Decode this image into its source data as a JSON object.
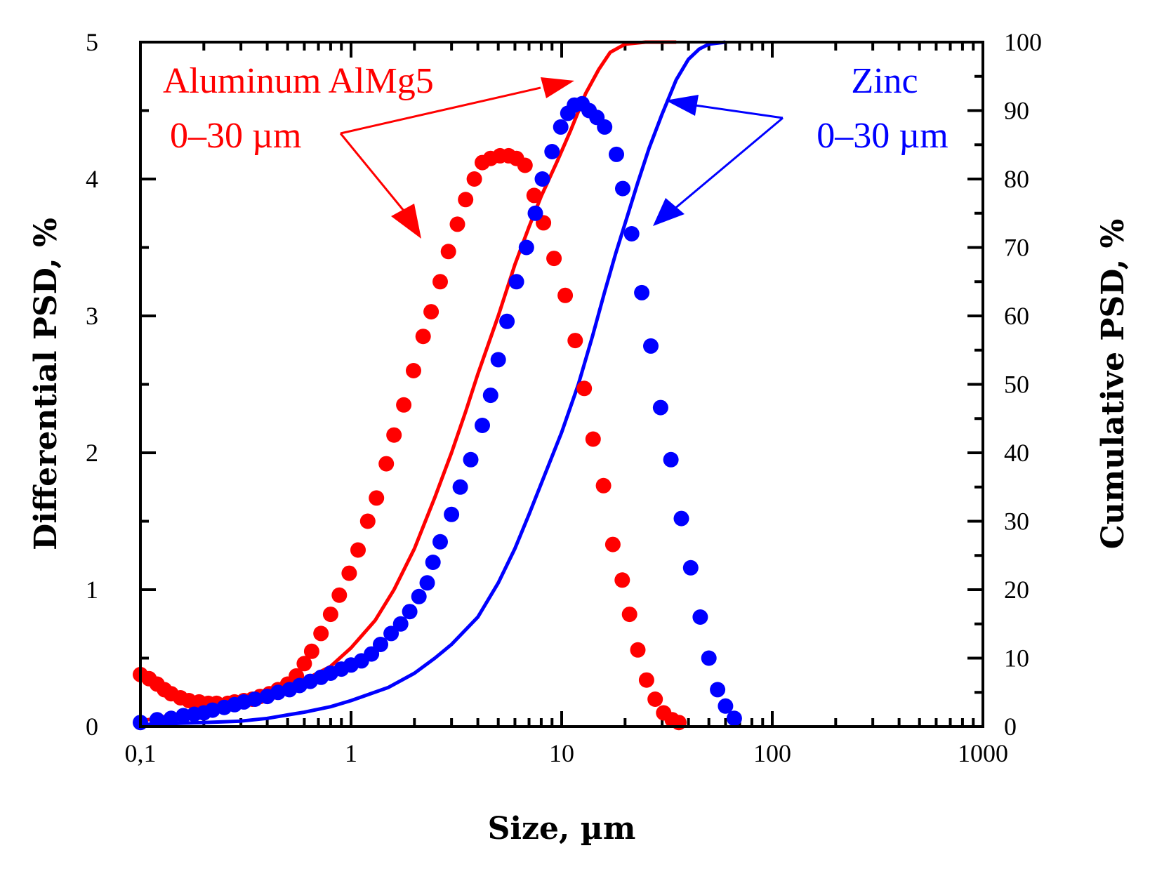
{
  "chart_data": {
    "type": "scatter",
    "xlabel": "Size, µm",
    "ylabel_left": "Differential PSD, %",
    "ylabel_right": "Cumulative PSD, %",
    "xscale": "log",
    "xlim": [
      0.1,
      1000
    ],
    "ylim_left": [
      0,
      5
    ],
    "ylim_right": [
      0,
      100
    ],
    "x_ticks": [
      {
        "value": 0.1,
        "label": "0,1"
      },
      {
        "value": 1,
        "label": "1"
      },
      {
        "value": 10,
        "label": "10"
      },
      {
        "value": 100,
        "label": "100"
      },
      {
        "value": 1000,
        "label": "1000"
      }
    ],
    "y_ticks_left": [
      "0",
      "1",
      "2",
      "3",
      "4",
      "5"
    ],
    "y_ticks_right": [
      "0",
      "10",
      "20",
      "30",
      "40",
      "50",
      "60",
      "70",
      "80",
      "90",
      "100"
    ],
    "colors": {
      "aluminum": "#ff0000",
      "zinc": "#0000ff",
      "axis": "#000000"
    },
    "annotations": [
      {
        "series": "aluminum",
        "line1": "Aluminum AlMg5",
        "line2": "0–30 µm"
      },
      {
        "series": "zinc",
        "line1": "Zinc",
        "line2": "0–30 µm"
      }
    ],
    "series": [
      {
        "name": "Aluminum AlMg5 differential",
        "kind": "differential",
        "color": "#ff0000",
        "axis": "left",
        "points": [
          [
            0.1,
            0.38
          ],
          [
            0.11,
            0.35
          ],
          [
            0.12,
            0.31
          ],
          [
            0.13,
            0.27
          ],
          [
            0.14,
            0.24
          ],
          [
            0.155,
            0.21
          ],
          [
            0.17,
            0.19
          ],
          [
            0.19,
            0.18
          ],
          [
            0.21,
            0.17
          ],
          [
            0.23,
            0.17
          ],
          [
            0.26,
            0.17
          ],
          [
            0.28,
            0.18
          ],
          [
            0.31,
            0.19
          ],
          [
            0.34,
            0.2
          ],
          [
            0.37,
            0.22
          ],
          [
            0.41,
            0.24
          ],
          [
            0.45,
            0.27
          ],
          [
            0.5,
            0.31
          ],
          [
            0.55,
            0.37
          ],
          [
            0.6,
            0.46
          ],
          [
            0.65,
            0.55
          ],
          [
            0.72,
            0.68
          ],
          [
            0.8,
            0.82
          ],
          [
            0.88,
            0.96
          ],
          [
            0.98,
            1.12
          ],
          [
            1.08,
            1.29
          ],
          [
            1.2,
            1.5
          ],
          [
            1.32,
            1.67
          ],
          [
            1.47,
            1.92
          ],
          [
            1.6,
            2.13
          ],
          [
            1.78,
            2.35
          ],
          [
            1.98,
            2.6
          ],
          [
            2.2,
            2.85
          ],
          [
            2.4,
            3.03
          ],
          [
            2.65,
            3.25
          ],
          [
            2.9,
            3.47
          ],
          [
            3.2,
            3.67
          ],
          [
            3.5,
            3.85
          ],
          [
            3.85,
            4.0
          ],
          [
            4.2,
            4.12
          ],
          [
            4.6,
            4.15
          ],
          [
            5.1,
            4.17
          ],
          [
            5.6,
            4.17
          ],
          [
            6.1,
            4.15
          ],
          [
            6.7,
            4.1
          ],
          [
            7.4,
            3.88
          ],
          [
            8.2,
            3.68
          ],
          [
            9.2,
            3.42
          ],
          [
            10.4,
            3.15
          ],
          [
            11.6,
            2.82
          ],
          [
            12.8,
            2.47
          ],
          [
            14.1,
            2.1
          ],
          [
            15.8,
            1.76
          ],
          [
            17.5,
            1.33
          ],
          [
            19.4,
            1.07
          ],
          [
            21.0,
            0.82
          ],
          [
            23.0,
            0.56
          ],
          [
            25.3,
            0.34
          ],
          [
            27.8,
            0.2
          ],
          [
            30.5,
            0.1
          ],
          [
            33.5,
            0.05
          ],
          [
            36.0,
            0.03
          ]
        ]
      },
      {
        "name": "Zinc differential",
        "kind": "differential",
        "color": "#0000ff",
        "axis": "left",
        "points": [
          [
            0.1,
            0.03
          ],
          [
            0.12,
            0.05
          ],
          [
            0.14,
            0.06
          ],
          [
            0.16,
            0.08
          ],
          [
            0.18,
            0.09
          ],
          [
            0.2,
            0.1
          ],
          [
            0.22,
            0.12
          ],
          [
            0.25,
            0.14
          ],
          [
            0.28,
            0.16
          ],
          [
            0.31,
            0.18
          ],
          [
            0.35,
            0.2
          ],
          [
            0.4,
            0.22
          ],
          [
            0.45,
            0.25
          ],
          [
            0.51,
            0.27
          ],
          [
            0.57,
            0.3
          ],
          [
            0.64,
            0.33
          ],
          [
            0.72,
            0.36
          ],
          [
            0.8,
            0.39
          ],
          [
            0.9,
            0.42
          ],
          [
            1.0,
            0.45
          ],
          [
            1.12,
            0.48
          ],
          [
            1.25,
            0.53
          ],
          [
            1.38,
            0.6
          ],
          [
            1.55,
            0.68
          ],
          [
            1.72,
            0.75
          ],
          [
            1.9,
            0.84
          ],
          [
            2.1,
            0.95
          ],
          [
            2.3,
            1.05
          ],
          [
            2.45,
            1.2
          ],
          [
            2.65,
            1.35
          ],
          [
            3.0,
            1.55
          ],
          [
            3.3,
            1.75
          ],
          [
            3.7,
            1.95
          ],
          [
            4.2,
            2.2
          ],
          [
            4.6,
            2.42
          ],
          [
            5.0,
            2.68
          ],
          [
            5.5,
            2.96
          ],
          [
            6.1,
            3.25
          ],
          [
            6.8,
            3.5
          ],
          [
            7.5,
            3.75
          ],
          [
            8.1,
            4.0
          ],
          [
            9.0,
            4.2
          ],
          [
            9.9,
            4.38
          ],
          [
            10.7,
            4.48
          ],
          [
            11.5,
            4.54
          ],
          [
            12.5,
            4.55
          ],
          [
            13.5,
            4.5
          ],
          [
            14.7,
            4.45
          ],
          [
            16.0,
            4.38
          ],
          [
            18.2,
            4.18
          ],
          [
            19.5,
            3.93
          ],
          [
            21.5,
            3.6
          ],
          [
            24.0,
            3.17
          ],
          [
            26.5,
            2.78
          ],
          [
            29.5,
            2.33
          ],
          [
            33.0,
            1.95
          ],
          [
            37.0,
            1.52
          ],
          [
            41.0,
            1.16
          ],
          [
            45.5,
            0.8
          ],
          [
            50.0,
            0.5
          ],
          [
            55.0,
            0.27
          ],
          [
            60.0,
            0.15
          ],
          [
            66.0,
            0.06
          ]
        ]
      },
      {
        "name": "Aluminum AlMg5 cumulative",
        "kind": "cumulative",
        "color": "#ff0000",
        "axis": "right",
        "points": [
          [
            0.1,
            0.8
          ],
          [
            0.15,
            1.8
          ],
          [
            0.2,
            2.5
          ],
          [
            0.3,
            3.2
          ],
          [
            0.4,
            4.2
          ],
          [
            0.5,
            5.5
          ],
          [
            0.6,
            6.8
          ],
          [
            0.8,
            8.8
          ],
          [
            1.0,
            11.5
          ],
          [
            1.3,
            15.5
          ],
          [
            1.6,
            20.0
          ],
          [
            2.0,
            26.0
          ],
          [
            2.5,
            33.5
          ],
          [
            3.0,
            40.0
          ],
          [
            3.5,
            46.0
          ],
          [
            4.0,
            51.5
          ],
          [
            5.0,
            60.0
          ],
          [
            6.0,
            67.5
          ],
          [
            7.0,
            73.0
          ],
          [
            8.0,
            77.5
          ],
          [
            9.5,
            82.5
          ],
          [
            11.0,
            87.0
          ],
          [
            13.0,
            92.5
          ],
          [
            15.0,
            96.0
          ],
          [
            17.0,
            98.5
          ],
          [
            20.0,
            99.7
          ],
          [
            25.0,
            100
          ],
          [
            35.0,
            100
          ]
        ]
      },
      {
        "name": "Zinc cumulative",
        "kind": "cumulative",
        "color": "#0000ff",
        "axis": "right",
        "points": [
          [
            0.1,
            0.3
          ],
          [
            0.2,
            0.6
          ],
          [
            0.3,
            0.8
          ],
          [
            0.4,
            1.2
          ],
          [
            0.5,
            1.7
          ],
          [
            0.6,
            2.1
          ],
          [
            0.8,
            2.9
          ],
          [
            1.0,
            3.8
          ],
          [
            1.5,
            5.7
          ],
          [
            2.0,
            7.8
          ],
          [
            2.5,
            10.0
          ],
          [
            3.0,
            12.0
          ],
          [
            4.0,
            16.0
          ],
          [
            5.0,
            21.0
          ],
          [
            6.0,
            26.0
          ],
          [
            7.0,
            31.0
          ],
          [
            8.0,
            35.5
          ],
          [
            10.0,
            43.0
          ],
          [
            12.0,
            50.0
          ],
          [
            14.0,
            57.0
          ],
          [
            16.0,
            63.5
          ],
          [
            18.0,
            69.0
          ],
          [
            20.0,
            73.5
          ],
          [
            23.0,
            79.5
          ],
          [
            26.0,
            84.5
          ],
          [
            30.0,
            89.5
          ],
          [
            35.0,
            94.5
          ],
          [
            40.0,
            97.5
          ],
          [
            45.0,
            99.0
          ],
          [
            50.0,
            99.7
          ],
          [
            60.0,
            100
          ]
        ]
      }
    ]
  }
}
